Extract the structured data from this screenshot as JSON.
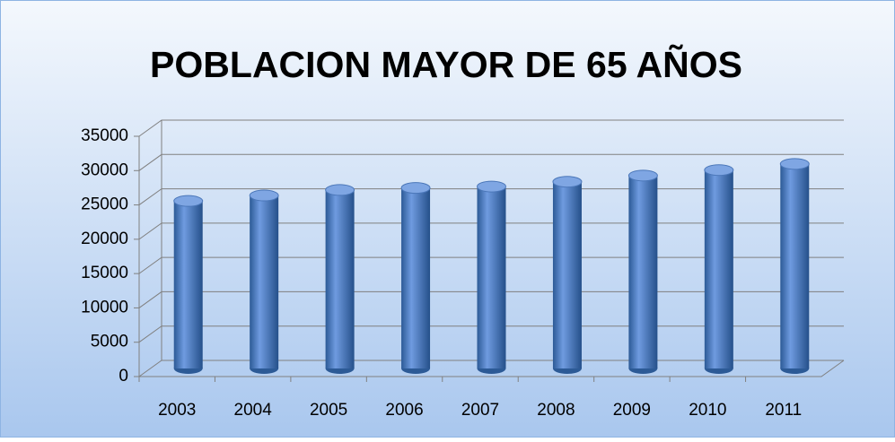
{
  "chart_data": {
    "type": "bar3d",
    "title": "POBLACION MAYOR DE 65 AÑOS",
    "categories": [
      "2003",
      "2004",
      "2005",
      "2006",
      "2007",
      "2008",
      "2009",
      "2010",
      "2011"
    ],
    "values": [
      24400,
      25200,
      26000,
      26300,
      26500,
      27200,
      28100,
      28900,
      29800
    ],
    "color": "#4f81bd",
    "ylim": [
      0,
      35000
    ],
    "yticks": [
      0,
      5000,
      10000,
      15000,
      20000,
      25000,
      30000,
      35000
    ],
    "grid": true
  }
}
